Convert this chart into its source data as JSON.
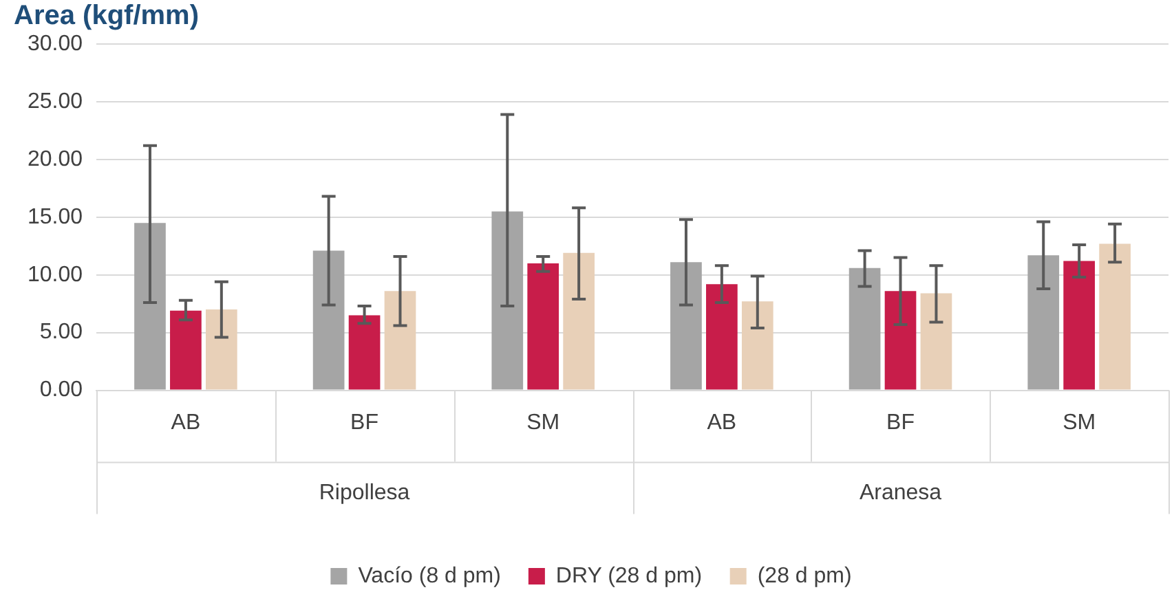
{
  "chart_data": {
    "type": "bar",
    "title": "Area (kgf/mm)",
    "categories": [
      "AB",
      "BF",
      "SM",
      "AB",
      "BF",
      "SM"
    ],
    "annotations": [
      "Ripollesa",
      "Aranesa"
    ],
    "series": [
      {
        "name": "Vacío (8 d pm)",
        "color": "#a5a5a5",
        "values": [
          14.5,
          12.1,
          15.5,
          11.1,
          10.6,
          11.7
        ],
        "errors": [
          [
            7.6,
            21.2
          ],
          [
            7.4,
            16.8
          ],
          [
            7.3,
            23.9
          ],
          [
            7.4,
            14.8
          ],
          [
            9.0,
            12.1
          ],
          [
            8.8,
            14.6
          ]
        ]
      },
      {
        "name": "DRY (28 d pm)",
        "color": "#c81d4a",
        "values": [
          6.9,
          6.5,
          11.0,
          9.2,
          8.6,
          11.2
        ],
        "errors": [
          [
            6.1,
            7.8
          ],
          [
            5.8,
            7.3
          ],
          [
            10.3,
            11.6
          ],
          [
            7.6,
            10.8
          ],
          [
            5.7,
            11.5
          ],
          [
            9.8,
            12.6
          ]
        ]
      },
      {
        "name": "(28 d pm)",
        "color": "#e8d0b8",
        "values": [
          7.0,
          8.6,
          11.9,
          7.7,
          8.4,
          12.7
        ],
        "errors": [
          [
            4.6,
            9.4
          ],
          [
            5.6,
            11.6
          ],
          [
            7.9,
            15.8
          ],
          [
            5.4,
            9.9
          ],
          [
            5.9,
            10.8
          ],
          [
            11.1,
            14.4
          ]
        ]
      }
    ],
    "ylim": [
      0,
      30
    ],
    "yticks": [
      {
        "value": 0,
        "label": "0.00"
      },
      {
        "value": 5,
        "label": "5.00"
      },
      {
        "value": 10,
        "label": "10.00"
      },
      {
        "value": 15,
        "label": "15.00"
      },
      {
        "value": 20,
        "label": "20.00"
      },
      {
        "value": 25,
        "label": "25.00"
      },
      {
        "value": 30,
        "label": "30.00"
      }
    ],
    "grid": "y",
    "legend": "bottom"
  }
}
